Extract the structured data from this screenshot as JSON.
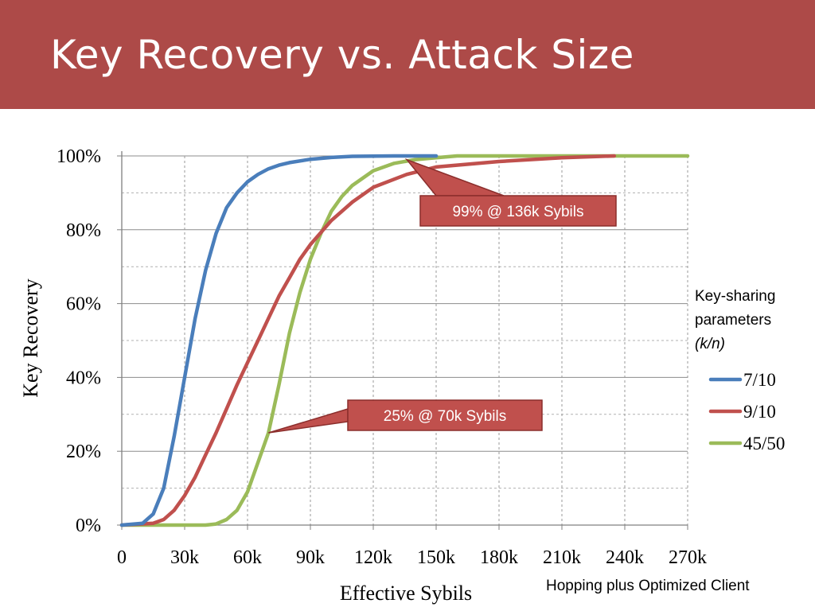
{
  "slide": {
    "title": "Key Recovery vs. Attack Size",
    "footnote": "Hopping plus Optimized Client"
  },
  "colors": {
    "title_bar": "#ad4a48",
    "series_7_10": "#4a7ebb",
    "series_9_10": "#c0504d",
    "series_45_50": "#9bbb59",
    "callout": "#c0504d"
  },
  "legend_header": {
    "line1": "Key-sharing",
    "line2": "parameters",
    "line3": "(k/n)"
  },
  "callouts": [
    {
      "text": "99% @ 136k Sybils",
      "x": 136000,
      "y": 99
    },
    {
      "text": "25% @ 70k Sybils",
      "x": 70000,
      "y": 25
    }
  ],
  "chart_data": {
    "type": "line",
    "title": "",
    "xlabel": "Effective Sybils",
    "ylabel": "Key Recovery",
    "xlim": [
      0,
      270000
    ],
    "ylim": [
      0,
      100
    ],
    "x_ticks": [
      "0",
      "30k",
      "60k",
      "90k",
      "120k",
      "150k",
      "180k",
      "210k",
      "240k",
      "270k"
    ],
    "y_ticks": [
      "0%",
      "20%",
      "40%",
      "60%",
      "80%",
      "100%"
    ],
    "grid": true,
    "legend_position": "right",
    "series": [
      {
        "name": "7/10",
        "color": "#4a7ebb",
        "x": [
          0,
          10000,
          15000,
          20000,
          25000,
          30000,
          35000,
          40000,
          45000,
          50000,
          55000,
          60000,
          65000,
          70000,
          75000,
          80000,
          90000,
          100000,
          110000,
          130000,
          150000
        ],
        "y": [
          0,
          0.5,
          3,
          10,
          24,
          40,
          56,
          69,
          79,
          86,
          90,
          93,
          95,
          96.5,
          97.5,
          98.2,
          99.1,
          99.6,
          99.9,
          100,
          100
        ]
      },
      {
        "name": "9/10",
        "color": "#c0504d",
        "x": [
          0,
          15000,
          20000,
          25000,
          30000,
          35000,
          40000,
          45000,
          50000,
          55000,
          60000,
          65000,
          70000,
          75000,
          80000,
          85000,
          90000,
          100000,
          110000,
          120000,
          136000,
          150000,
          180000,
          210000,
          235000
        ],
        "y": [
          0,
          0.5,
          1.5,
          4,
          8,
          13,
          19,
          25,
          31.5,
          38,
          44,
          50,
          56,
          62,
          67,
          72,
          76,
          82.5,
          87.5,
          91.5,
          95,
          97,
          98.5,
          99.5,
          100
        ]
      },
      {
        "name": "45/50",
        "color": "#9bbb59",
        "x": [
          0,
          40000,
          45000,
          50000,
          55000,
          60000,
          65000,
          70000,
          75000,
          80000,
          85000,
          90000,
          95000,
          100000,
          105000,
          110000,
          120000,
          130000,
          140000,
          150000,
          160000,
          180000,
          270000
        ],
        "y": [
          0,
          0,
          0.3,
          1.5,
          4,
          9,
          17,
          25,
          38,
          52,
          63,
          72,
          79,
          85,
          89,
          92,
          96,
          98,
          99,
          99.5,
          100,
          100,
          100
        ]
      }
    ]
  }
}
